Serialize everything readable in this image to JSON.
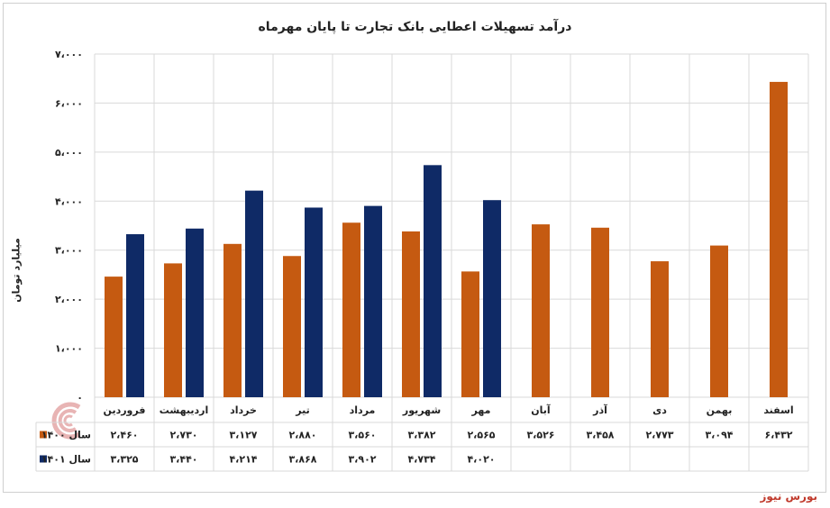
{
  "chart_data": {
    "type": "bar",
    "title": "درآمد تسهیلات اعطایی بانک تجارت تا پایان مهرماه",
    "ylabel": "میلیارد تومان",
    "ylim": [
      0,
      7000
    ],
    "yticks": [
      "۰",
      "۱،۰۰۰",
      "۲،۰۰۰",
      "۳،۰۰۰",
      "۴،۰۰۰",
      "۵،۰۰۰",
      "۶،۰۰۰",
      "۷،۰۰۰"
    ],
    "categories": [
      "فروردین",
      "اردیبهشت",
      "خرداد",
      "تیر",
      "مرداد",
      "شهریور",
      "مهر",
      "آبان",
      "آذر",
      "دی",
      "بهمن",
      "اسفند"
    ],
    "series": [
      {
        "name": "سال ۱۴۰۰",
        "color": "#c55a11",
        "values": [
          2460,
          2730,
          3127,
          2880,
          3560,
          3382,
          2565,
          3526,
          3458,
          2773,
          3094,
          6432
        ],
        "labels": [
          "۲،۴۶۰",
          "۲،۷۳۰",
          "۳،۱۲۷",
          "۲،۸۸۰",
          "۳،۵۶۰",
          "۳،۳۸۲",
          "۲،۵۶۵",
          "۳،۵۲۶",
          "۳،۴۵۸",
          "۲،۷۷۳",
          "۳،۰۹۴",
          "۶،۴۳۲"
        ]
      },
      {
        "name": "سال ۱۴۰۱",
        "color": "#0f2a66",
        "values": [
          3325,
          3440,
          4214,
          3868,
          3902,
          4734,
          4020,
          null,
          null,
          null,
          null,
          null
        ],
        "labels": [
          "۳،۳۲۵",
          "۳،۴۴۰",
          "۴،۲۱۴",
          "۳،۸۶۸",
          "۳،۹۰۲",
          "۴،۷۳۴",
          "۴،۰۲۰",
          "",
          "",
          "",
          "",
          ""
        ]
      }
    ],
    "grid": true,
    "legend": "data-table"
  },
  "source": "بورس نیوز",
  "logo_text": "بورس نیوز",
  "colors": {
    "bar_1400": "#c55a11",
    "bar_1401": "#0f2a66",
    "grid": "#d9d9d9"
  }
}
